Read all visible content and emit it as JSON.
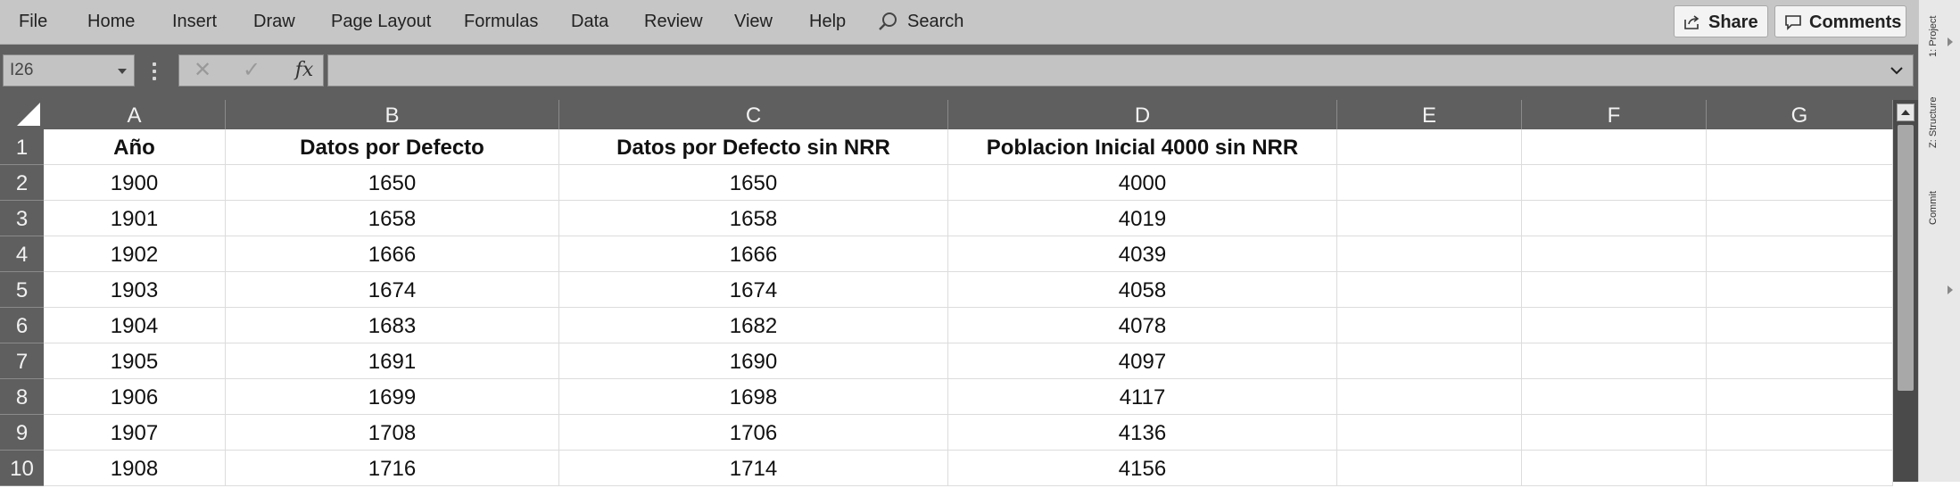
{
  "ribbon": {
    "menu": [
      "File",
      "Home",
      "Insert",
      "Draw",
      "Page Layout",
      "Formulas",
      "Data",
      "Review",
      "View",
      "Help"
    ],
    "search_label": "Search",
    "share_label": "Share",
    "comments_label": "Comments"
  },
  "formula_bar": {
    "name_box": "I26",
    "formula": ""
  },
  "sheet": {
    "columns": [
      "A",
      "B",
      "C",
      "D",
      "E",
      "F",
      "G"
    ],
    "rows": [
      [
        "Año",
        "Datos por Defecto",
        "Datos por Defecto sin NRR",
        "Poblacion Inicial 4000 sin NRR",
        "",
        "",
        ""
      ],
      [
        "1900",
        "1650",
        "1650",
        "4000",
        "",
        "",
        ""
      ],
      [
        "1901",
        "1658",
        "1658",
        "4019",
        "",
        "",
        ""
      ],
      [
        "1902",
        "1666",
        "1666",
        "4039",
        "",
        "",
        ""
      ],
      [
        "1903",
        "1674",
        "1674",
        "4058",
        "",
        "",
        ""
      ],
      [
        "1904",
        "1683",
        "1682",
        "4078",
        "",
        "",
        ""
      ],
      [
        "1905",
        "1691",
        "1690",
        "4097",
        "",
        "",
        ""
      ],
      [
        "1906",
        "1699",
        "1698",
        "4117",
        "",
        "",
        ""
      ],
      [
        "1907",
        "1708",
        "1706",
        "4136",
        "",
        "",
        ""
      ],
      [
        "1908",
        "1716",
        "1714",
        "4156",
        "",
        "",
        ""
      ]
    ],
    "row_numbers": [
      "1",
      "2",
      "3",
      "4",
      "5",
      "6",
      "7",
      "8",
      "9",
      "10"
    ]
  },
  "side_panel": {
    "tabs": [
      "1: Project",
      "Z: Structure",
      "Commit"
    ]
  }
}
